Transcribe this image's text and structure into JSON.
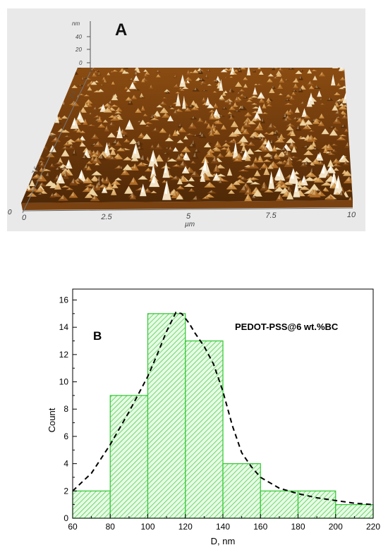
{
  "panel_a": {
    "label": "A",
    "z_unit": "nm",
    "z_ticks": [
      "40",
      "20",
      "0"
    ],
    "side_ticks": [
      "2.5",
      "5",
      "7.5"
    ],
    "corner_tick": "0",
    "x_ticks": [
      "0",
      "2.5",
      "5",
      "7.5",
      "10"
    ],
    "x_unit": "µm",
    "colors": {
      "background": "#e9e9e9",
      "dark": "#3a1d06",
      "mid": "#a8661c",
      "light": "#f2e3c6"
    }
  },
  "chart_data": {
    "type": "bar",
    "panel_label": "B",
    "annotation": "PEDOT-PSS@6 wt.%BC",
    "xlabel": "D, nm",
    "ylabel": "Count",
    "xlim": [
      60,
      220
    ],
    "ylim": [
      0,
      16.8
    ],
    "x_ticks": [
      60,
      80,
      100,
      120,
      140,
      160,
      180,
      200,
      220
    ],
    "y_ticks": [
      0,
      2,
      4,
      6,
      8,
      10,
      12,
      14,
      16
    ],
    "bins": [
      {
        "from": 60,
        "to": 80,
        "count": 2
      },
      {
        "from": 80,
        "to": 100,
        "count": 9
      },
      {
        "from": 100,
        "to": 120,
        "count": 15
      },
      {
        "from": 120,
        "to": 140,
        "count": 13
      },
      {
        "from": 140,
        "to": 160,
        "count": 4
      },
      {
        "from": 160,
        "to": 180,
        "count": 2
      },
      {
        "from": 180,
        "to": 200,
        "count": 2
      },
      {
        "from": 200,
        "to": 220,
        "count": 1
      }
    ],
    "fit_curve": {
      "style": "dashed",
      "points": [
        [
          60,
          2.0
        ],
        [
          70,
          3.3
        ],
        [
          80,
          5.4
        ],
        [
          90,
          7.8
        ],
        [
          100,
          10.4
        ],
        [
          105,
          12.0
        ],
        [
          110,
          13.7
        ],
        [
          115,
          15.1
        ],
        [
          118,
          15.0
        ],
        [
          122,
          14.3
        ],
        [
          125,
          13.6
        ],
        [
          130,
          12.6
        ],
        [
          135,
          11.3
        ],
        [
          140,
          9.3
        ],
        [
          145,
          6.8
        ],
        [
          150,
          4.8
        ],
        [
          155,
          3.8
        ],
        [
          160,
          3.0
        ],
        [
          170,
          2.2
        ],
        [
          180,
          1.8
        ],
        [
          190,
          1.5
        ],
        [
          200,
          1.3
        ],
        [
          210,
          1.1
        ],
        [
          220,
          1.0
        ]
      ]
    },
    "colors": {
      "bar_fill": "#e8fbe6",
      "hatch": "#2ec82e",
      "fit": "#000000"
    }
  }
}
